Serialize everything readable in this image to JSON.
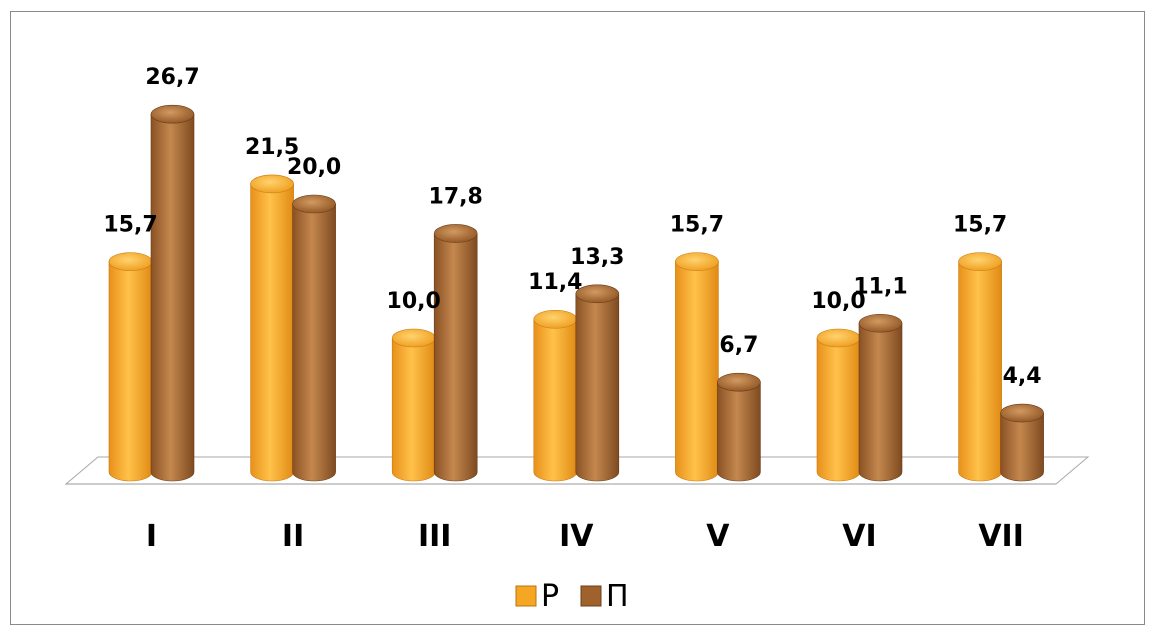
{
  "chart_data": {
    "type": "bar",
    "title": "",
    "xlabel": "",
    "ylabel": "",
    "categories": [
      "I",
      "II",
      "III",
      "IV",
      "V",
      "VI",
      "VII"
    ],
    "series": [
      {
        "name": "Р",
        "values": [
          15.7,
          21.5,
          10.0,
          11.4,
          15.7,
          10.0,
          15.7
        ],
        "labels": [
          "15,7",
          "21,5",
          "10,0",
          "11,4",
          "15,7",
          "10,0",
          "15,7"
        ],
        "color": "#f5a623"
      },
      {
        "name": "П",
        "values": [
          26.7,
          20.0,
          17.8,
          13.3,
          6.7,
          11.1,
          4.4
        ],
        "labels": [
          "26,7",
          "20,0",
          "17,8",
          "13,3",
          "6,7",
          "11,1",
          "4,4"
        ],
        "color": "#a0622d"
      }
    ],
    "ylim": [
      0,
      27
    ],
    "bar_shape": "cylinder",
    "grid": false,
    "legend_position": "bottom"
  }
}
